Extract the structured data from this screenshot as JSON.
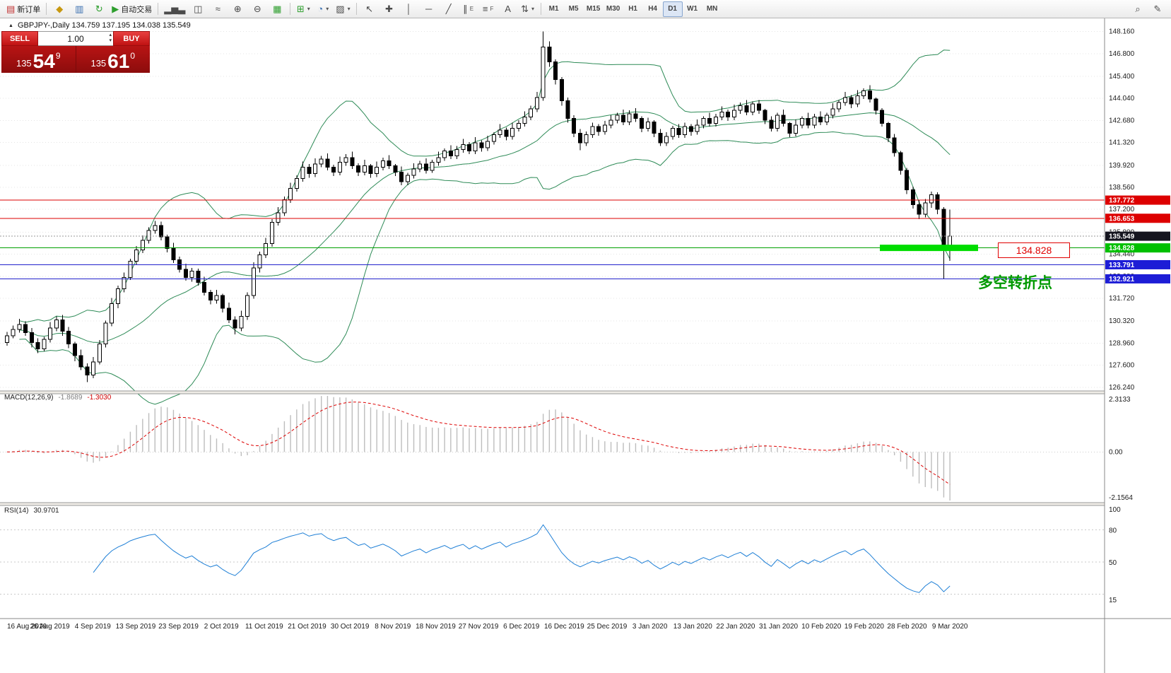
{
  "toolbar": {
    "groups": [
      {
        "items": [
          {
            "name": "new-order-button",
            "icon": "new-order-icon",
            "glyph": "▤",
            "color": "#c03030",
            "label": "新订单"
          }
        ]
      },
      {
        "items": [
          {
            "name": "chart-window-button",
            "icon": "chart-window-icon",
            "glyph": "◆",
            "color": "#c79810"
          },
          {
            "name": "market-watch-button",
            "icon": "market-watch-icon",
            "glyph": "▥",
            "color": "#3a6fb0"
          },
          {
            "name": "refresh-button",
            "icon": "refresh-icon",
            "glyph": "↻",
            "color": "#2d9e2d"
          },
          {
            "name": "auto-trading-button",
            "icon": "auto-trading-icon",
            "glyph": "▶",
            "color": "#2d9e2d",
            "label": "自动交易"
          }
        ]
      },
      {
        "items": [
          {
            "name": "bar-chart-button",
            "icon": "bar-chart-icon",
            "glyph": "▂▅▃"
          },
          {
            "name": "candlestick-chart-button",
            "icon": "candlestick-chart-icon",
            "glyph": "◫"
          },
          {
            "name": "line-chart-button",
            "icon": "line-chart-icon",
            "glyph": "≈"
          },
          {
            "name": "zoom-in-button",
            "icon": "zoom-in-icon",
            "glyph": "⊕"
          },
          {
            "name": "zoom-out-button",
            "icon": "zoom-out-icon",
            "glyph": "⊖"
          },
          {
            "name": "tile-windows-button",
            "icon": "tile-windows-icon",
            "glyph": "▦",
            "color": "#2d9e2d"
          }
        ]
      },
      {
        "items": [
          {
            "name": "indicators-button",
            "icon": "indicators-icon",
            "glyph": "⊞",
            "color": "#2d9e2d",
            "dropdown": true
          },
          {
            "name": "periods-button",
            "icon": "clock-icon",
            "glyph": "◔",
            "color": "#3a6fb0",
            "dropdown": true
          },
          {
            "name": "templates-button",
            "icon": "template-icon",
            "glyph": "▨",
            "dropdown": true
          }
        ]
      },
      {
        "items": [
          {
            "name": "cursor-button",
            "icon": "cursor-icon",
            "glyph": "↖"
          },
          {
            "name": "crosshair-button",
            "icon": "crosshair-icon",
            "glyph": "✚"
          },
          {
            "name": "vertical-line-button",
            "icon": "vertical-line-icon",
            "glyph": "│"
          },
          {
            "name": "horizontal-line-button",
            "icon": "horizontal-line-icon",
            "glyph": "─"
          },
          {
            "name": "trendline-button",
            "icon": "trendline-icon",
            "glyph": "╱"
          },
          {
            "name": "channel-button",
            "icon": "channel-icon",
            "glyph": "∥",
            "sub": "E"
          },
          {
            "name": "fibonacci-button",
            "icon": "fibonacci-icon",
            "glyph": "≡",
            "sub": "F"
          },
          {
            "name": "text-button",
            "icon": "text-icon",
            "glyph": "A"
          },
          {
            "name": "arrows-button",
            "icon": "arrows-icon",
            "glyph": "⇅",
            "dropdown": true
          }
        ]
      }
    ],
    "timeframes": [
      "M1",
      "M5",
      "M15",
      "M30",
      "H1",
      "H4",
      "D1",
      "W1",
      "MN"
    ],
    "active_timeframe": "D1",
    "right_items": [
      {
        "name": "search-button",
        "icon": "search-icon",
        "glyph": "⌕"
      },
      {
        "name": "edit-button",
        "icon": "pencil-icon",
        "glyph": "✎"
      }
    ]
  },
  "chart": {
    "title": "GBPJPY-,Daily 134.759 137.195 134.038 135.549",
    "collapse_icon": "▲"
  },
  "trade_panel": {
    "sell_label": "SELL",
    "buy_label": "BUY",
    "volume": "1.00",
    "sell_price_prefix": "135",
    "sell_price_big": "54",
    "sell_price_sup": "9",
    "buy_price_prefix": "135",
    "buy_price_big": "61",
    "buy_price_sup": "0"
  },
  "annotations": {
    "price_label": "134.828",
    "turning_point_label": "多空转折点",
    "highlight_color": "#00dd00",
    "highlight_level": 134.828
  },
  "levels": [
    {
      "value": 137.772,
      "label": "137.772",
      "color": "#dd0000",
      "tag_bg": "#dd0000",
      "dashed": false
    },
    {
      "value": 136.653,
      "label": "136.653",
      "color": "#dd0000",
      "tag_bg": "#dd0000",
      "dashed": false
    },
    {
      "value": 135.549,
      "label": "135.549",
      "color": "#9a9a9a",
      "tag_bg": "#15151f",
      "dashed": true
    },
    {
      "value": 134.828,
      "label": "134.828",
      "color": "#00a000",
      "tag_bg": "#00c000",
      "dashed": false
    },
    {
      "value": 133.791,
      "label": "133.791",
      "color": "#2222cc",
      "tag_bg": "#1d1dd6",
      "dashed": false
    },
    {
      "value": 132.921,
      "label": "132.921",
      "color": "#2222cc",
      "tag_bg": "#1d1dd6",
      "dashed": false
    }
  ],
  "chart_data": {
    "type": "candlestick",
    "symbol": "GBPJPY-",
    "period": "Daily",
    "ohlc_display": {
      "open": "134.759",
      "high": "137.195",
      "low": "134.038",
      "close": "135.549"
    },
    "price_axis": [
      "148.160",
      "146.800",
      "145.400",
      "144.040",
      "142.680",
      "141.320",
      "139.920",
      "138.560",
      "137.200",
      "135.800",
      "134.440",
      "133.080",
      "131.720",
      "130.320",
      "128.960",
      "127.600",
      "126.240"
    ],
    "date_axis": [
      "16 Aug 2019",
      "26 Aug 2019",
      "4 Sep 2019",
      "13 Sep 2019",
      "23 Sep 2019",
      "2 Oct 2019",
      "11 Oct 2019",
      "21 Oct 2019",
      "30 Oct 2019",
      "8 Nov 2019",
      "18 Nov 2019",
      "27 Nov 2019",
      "6 Dec 2019",
      "16 Dec 2019",
      "25 Dec 2019",
      "3 Jan 2020",
      "13 Jan 2020",
      "22 Jan 2020",
      "31 Jan 2020",
      "10 Feb 2020",
      "19 Feb 2020",
      "28 Feb 2020",
      "9 Mar 2020"
    ],
    "candle_up_fill": "#ffffff",
    "candle_down_fill": "#000000",
    "wick_color": "#000000",
    "candles": [
      [
        129.0,
        129.65,
        128.8,
        129.4
      ],
      [
        129.4,
        130.05,
        129.25,
        129.8
      ],
      [
        129.8,
        130.45,
        129.6,
        130.1
      ],
      [
        130.1,
        130.3,
        129.4,
        129.6
      ],
      [
        129.6,
        129.9,
        128.7,
        129.0
      ],
      [
        129.0,
        129.25,
        128.35,
        128.6
      ],
      [
        128.6,
        129.35,
        128.45,
        129.2
      ],
      [
        129.2,
        130.25,
        129.0,
        129.9
      ],
      [
        129.9,
        130.6,
        129.7,
        130.4
      ],
      [
        130.4,
        130.7,
        129.4,
        129.7
      ],
      [
        129.7,
        129.95,
        128.65,
        128.9
      ],
      [
        128.9,
        129.05,
        127.85,
        128.2
      ],
      [
        128.2,
        128.55,
        127.3,
        127.5
      ],
      [
        127.5,
        127.7,
        126.55,
        127.0
      ],
      [
        127.0,
        128.1,
        126.8,
        127.8
      ],
      [
        127.8,
        129.15,
        127.65,
        128.9
      ],
      [
        128.9,
        130.35,
        128.7,
        130.2
      ],
      [
        130.2,
        131.75,
        130.0,
        131.4
      ],
      [
        131.4,
        132.5,
        131.1,
        132.3
      ],
      [
        132.3,
        133.3,
        132.1,
        133.0
      ],
      [
        133.0,
        134.15,
        132.85,
        134.0
      ],
      [
        134.0,
        134.95,
        133.8,
        134.7
      ],
      [
        134.7,
        135.6,
        134.5,
        135.3
      ],
      [
        135.3,
        136.1,
        135.1,
        135.9
      ],
      [
        135.9,
        136.5,
        135.7,
        136.2
      ],
      [
        136.2,
        136.45,
        135.3,
        135.5
      ],
      [
        135.5,
        135.65,
        134.55,
        134.8
      ],
      [
        134.8,
        135.15,
        133.9,
        134.1
      ],
      [
        134.1,
        134.3,
        133.3,
        133.5
      ],
      [
        133.5,
        133.85,
        132.8,
        133.0
      ],
      [
        133.0,
        133.6,
        132.75,
        133.4
      ],
      [
        133.4,
        133.55,
        132.5,
        132.7
      ],
      [
        132.7,
        133.05,
        131.9,
        132.1
      ],
      [
        132.1,
        132.25,
        131.35,
        131.6
      ],
      [
        131.6,
        132.25,
        131.4,
        131.9
      ],
      [
        131.9,
        132.0,
        130.85,
        131.1
      ],
      [
        131.1,
        131.45,
        130.2,
        130.4
      ],
      [
        130.4,
        130.6,
        129.5,
        129.9
      ],
      [
        129.9,
        130.95,
        129.7,
        130.6
      ],
      [
        130.6,
        132.1,
        130.4,
        131.9
      ],
      [
        131.9,
        133.95,
        131.7,
        133.6
      ],
      [
        133.6,
        134.6,
        133.3,
        134.4
      ],
      [
        134.4,
        135.45,
        134.2,
        135.1
      ],
      [
        135.1,
        136.6,
        134.9,
        136.4
      ],
      [
        136.4,
        137.35,
        136.2,
        137.0
      ],
      [
        137.0,
        138.0,
        136.8,
        137.8
      ],
      [
        137.8,
        138.85,
        137.6,
        138.5
      ],
      [
        138.5,
        139.3,
        138.3,
        139.1
      ],
      [
        139.1,
        140.15,
        138.9,
        139.8
      ],
      [
        139.8,
        140.0,
        139.15,
        139.4
      ],
      [
        139.4,
        140.35,
        139.2,
        140.0
      ],
      [
        140.0,
        140.5,
        139.8,
        140.3
      ],
      [
        140.3,
        140.65,
        139.6,
        139.8
      ],
      [
        139.8,
        139.95,
        139.25,
        139.5
      ],
      [
        139.5,
        140.45,
        139.3,
        140.1
      ],
      [
        140.1,
        140.6,
        139.9,
        140.4
      ],
      [
        140.4,
        140.75,
        139.7,
        139.9
      ],
      [
        139.9,
        140.05,
        139.25,
        139.5
      ],
      [
        139.5,
        140.25,
        139.3,
        139.9
      ],
      [
        139.9,
        140.0,
        139.15,
        139.4
      ],
      [
        139.4,
        140.15,
        139.2,
        139.8
      ],
      [
        139.8,
        140.4,
        139.6,
        140.2
      ],
      [
        140.2,
        140.55,
        139.7,
        139.9
      ],
      [
        139.9,
        140.0,
        139.25,
        139.5
      ],
      [
        139.5,
        139.85,
        138.7,
        138.9
      ],
      [
        138.9,
        139.45,
        138.7,
        139.3
      ],
      [
        139.3,
        140.05,
        139.1,
        139.7
      ],
      [
        139.7,
        140.2,
        139.5,
        140.0
      ],
      [
        140.0,
        140.35,
        139.4,
        139.6
      ],
      [
        139.6,
        140.25,
        139.45,
        140.1
      ],
      [
        140.1,
        140.75,
        139.9,
        140.4
      ],
      [
        140.4,
        140.95,
        140.2,
        140.8
      ],
      [
        140.8,
        141.15,
        140.3,
        140.5
      ],
      [
        140.5,
        141.1,
        140.3,
        140.9
      ],
      [
        140.9,
        141.55,
        140.7,
        141.2
      ],
      [
        141.2,
        141.35,
        140.6,
        140.8
      ],
      [
        140.8,
        141.65,
        140.6,
        141.3
      ],
      [
        141.3,
        141.45,
        140.75,
        141.0
      ],
      [
        141.0,
        141.75,
        140.8,
        141.4
      ],
      [
        141.4,
        141.95,
        141.2,
        141.8
      ],
      [
        141.8,
        142.45,
        141.6,
        142.1
      ],
      [
        142.1,
        142.25,
        141.45,
        141.7
      ],
      [
        141.7,
        142.55,
        141.5,
        142.2
      ],
      [
        142.2,
        142.7,
        142.0,
        142.5
      ],
      [
        142.5,
        143.25,
        142.3,
        142.9
      ],
      [
        142.9,
        143.6,
        142.7,
        143.4
      ],
      [
        143.4,
        144.45,
        143.2,
        144.1
      ],
      [
        144.1,
        148.16,
        143.9,
        147.2
      ],
      [
        147.2,
        147.55,
        146.0,
        146.3
      ],
      [
        146.3,
        146.45,
        144.9,
        145.2
      ],
      [
        145.2,
        145.35,
        143.6,
        143.9
      ],
      [
        143.9,
        144.1,
        142.55,
        142.8
      ],
      [
        142.8,
        143.0,
        141.65,
        141.9
      ],
      [
        141.9,
        142.15,
        140.85,
        141.3
      ],
      [
        141.3,
        142.0,
        141.1,
        141.8
      ],
      [
        141.8,
        142.55,
        141.6,
        142.3
      ],
      [
        142.3,
        142.45,
        141.75,
        142.0
      ],
      [
        142.0,
        142.65,
        141.8,
        142.4
      ],
      [
        142.4,
        143.0,
        142.2,
        142.7
      ],
      [
        142.7,
        143.15,
        142.5,
        143.0
      ],
      [
        143.0,
        143.35,
        142.4,
        142.6
      ],
      [
        142.6,
        143.3,
        142.4,
        143.1
      ],
      [
        143.1,
        143.45,
        142.6,
        142.8
      ],
      [
        142.8,
        142.95,
        141.95,
        142.2
      ],
      [
        142.2,
        142.85,
        142.0,
        142.6
      ],
      [
        142.6,
        142.7,
        141.65,
        141.9
      ],
      [
        141.9,
        142.15,
        141.1,
        141.3
      ],
      [
        141.3,
        141.95,
        141.1,
        141.7
      ],
      [
        141.7,
        142.35,
        141.5,
        142.2
      ],
      [
        142.2,
        142.45,
        141.6,
        141.8
      ],
      [
        141.8,
        142.55,
        141.6,
        142.3
      ],
      [
        142.3,
        142.45,
        141.75,
        142.0
      ],
      [
        142.0,
        142.75,
        141.8,
        142.4
      ],
      [
        142.4,
        142.95,
        142.2,
        142.8
      ],
      [
        142.8,
        143.15,
        142.3,
        142.5
      ],
      [
        142.5,
        143.1,
        142.3,
        142.9
      ],
      [
        142.9,
        143.55,
        142.7,
        143.2
      ],
      [
        143.2,
        143.35,
        142.65,
        142.9
      ],
      [
        142.9,
        143.65,
        142.7,
        143.3
      ],
      [
        143.3,
        143.8,
        143.1,
        143.6
      ],
      [
        143.6,
        143.95,
        143.0,
        143.2
      ],
      [
        143.2,
        143.85,
        143.0,
        143.7
      ],
      [
        143.7,
        143.95,
        143.1,
        143.3
      ],
      [
        143.3,
        143.4,
        142.45,
        142.7
      ],
      [
        142.7,
        142.95,
        142.0,
        142.2
      ],
      [
        142.2,
        143.15,
        142.0,
        143.0
      ],
      [
        143.0,
        143.35,
        142.3,
        142.5
      ],
      [
        142.5,
        142.6,
        141.65,
        141.9
      ],
      [
        141.9,
        142.75,
        141.7,
        142.4
      ],
      [
        142.4,
        142.95,
        142.2,
        142.8
      ],
      [
        142.8,
        143.15,
        142.2,
        142.4
      ],
      [
        142.4,
        143.1,
        142.2,
        142.9
      ],
      [
        142.9,
        143.25,
        142.4,
        142.6
      ],
      [
        142.6,
        143.15,
        142.4,
        143.0
      ],
      [
        143.0,
        143.75,
        142.8,
        143.4
      ],
      [
        143.4,
        143.95,
        143.2,
        143.8
      ],
      [
        143.8,
        144.45,
        143.6,
        144.1
      ],
      [
        144.1,
        144.25,
        143.45,
        143.7
      ],
      [
        143.7,
        144.55,
        143.5,
        144.2
      ],
      [
        144.2,
        144.65,
        144.0,
        144.5
      ],
      [
        144.5,
        144.85,
        143.8,
        144.0
      ],
      [
        144.0,
        144.1,
        143.05,
        143.3
      ],
      [
        143.3,
        143.45,
        142.3,
        142.5
      ],
      [
        142.5,
        142.6,
        141.35,
        141.6
      ],
      [
        141.6,
        141.85,
        140.45,
        140.7
      ],
      [
        140.7,
        140.8,
        139.35,
        139.6
      ],
      [
        139.6,
        139.75,
        138.15,
        138.4
      ],
      [
        138.4,
        138.6,
        137.25,
        137.5
      ],
      [
        137.5,
        137.75,
        136.6,
        136.9
      ],
      [
        136.9,
        137.85,
        136.7,
        137.6
      ],
      [
        137.6,
        138.3,
        137.3,
        138.1
      ],
      [
        138.1,
        138.25,
        136.9,
        137.2
      ],
      [
        137.2,
        137.35,
        132.92,
        134.8
      ],
      [
        134.759,
        137.195,
        134.038,
        135.549
      ]
    ],
    "bollinger": {
      "period": 20,
      "deviation": 2,
      "color": "#2e8b57"
    },
    "macd": {
      "label": "MACD(12,26,9)",
      "values": [
        "-1.8689",
        "-1.3030"
      ],
      "axis": [
        "2.3133",
        "0.00",
        "-2.1564"
      ],
      "histogram_color": "#bdbdbd",
      "signal_color": "#dd0000"
    },
    "rsi": {
      "label": "RSI(14)",
      "value": "30.9701",
      "axis": [
        "100",
        "80",
        "50",
        "15"
      ],
      "levels": [
        80,
        50,
        20
      ],
      "color": "#1e7fd6"
    }
  }
}
